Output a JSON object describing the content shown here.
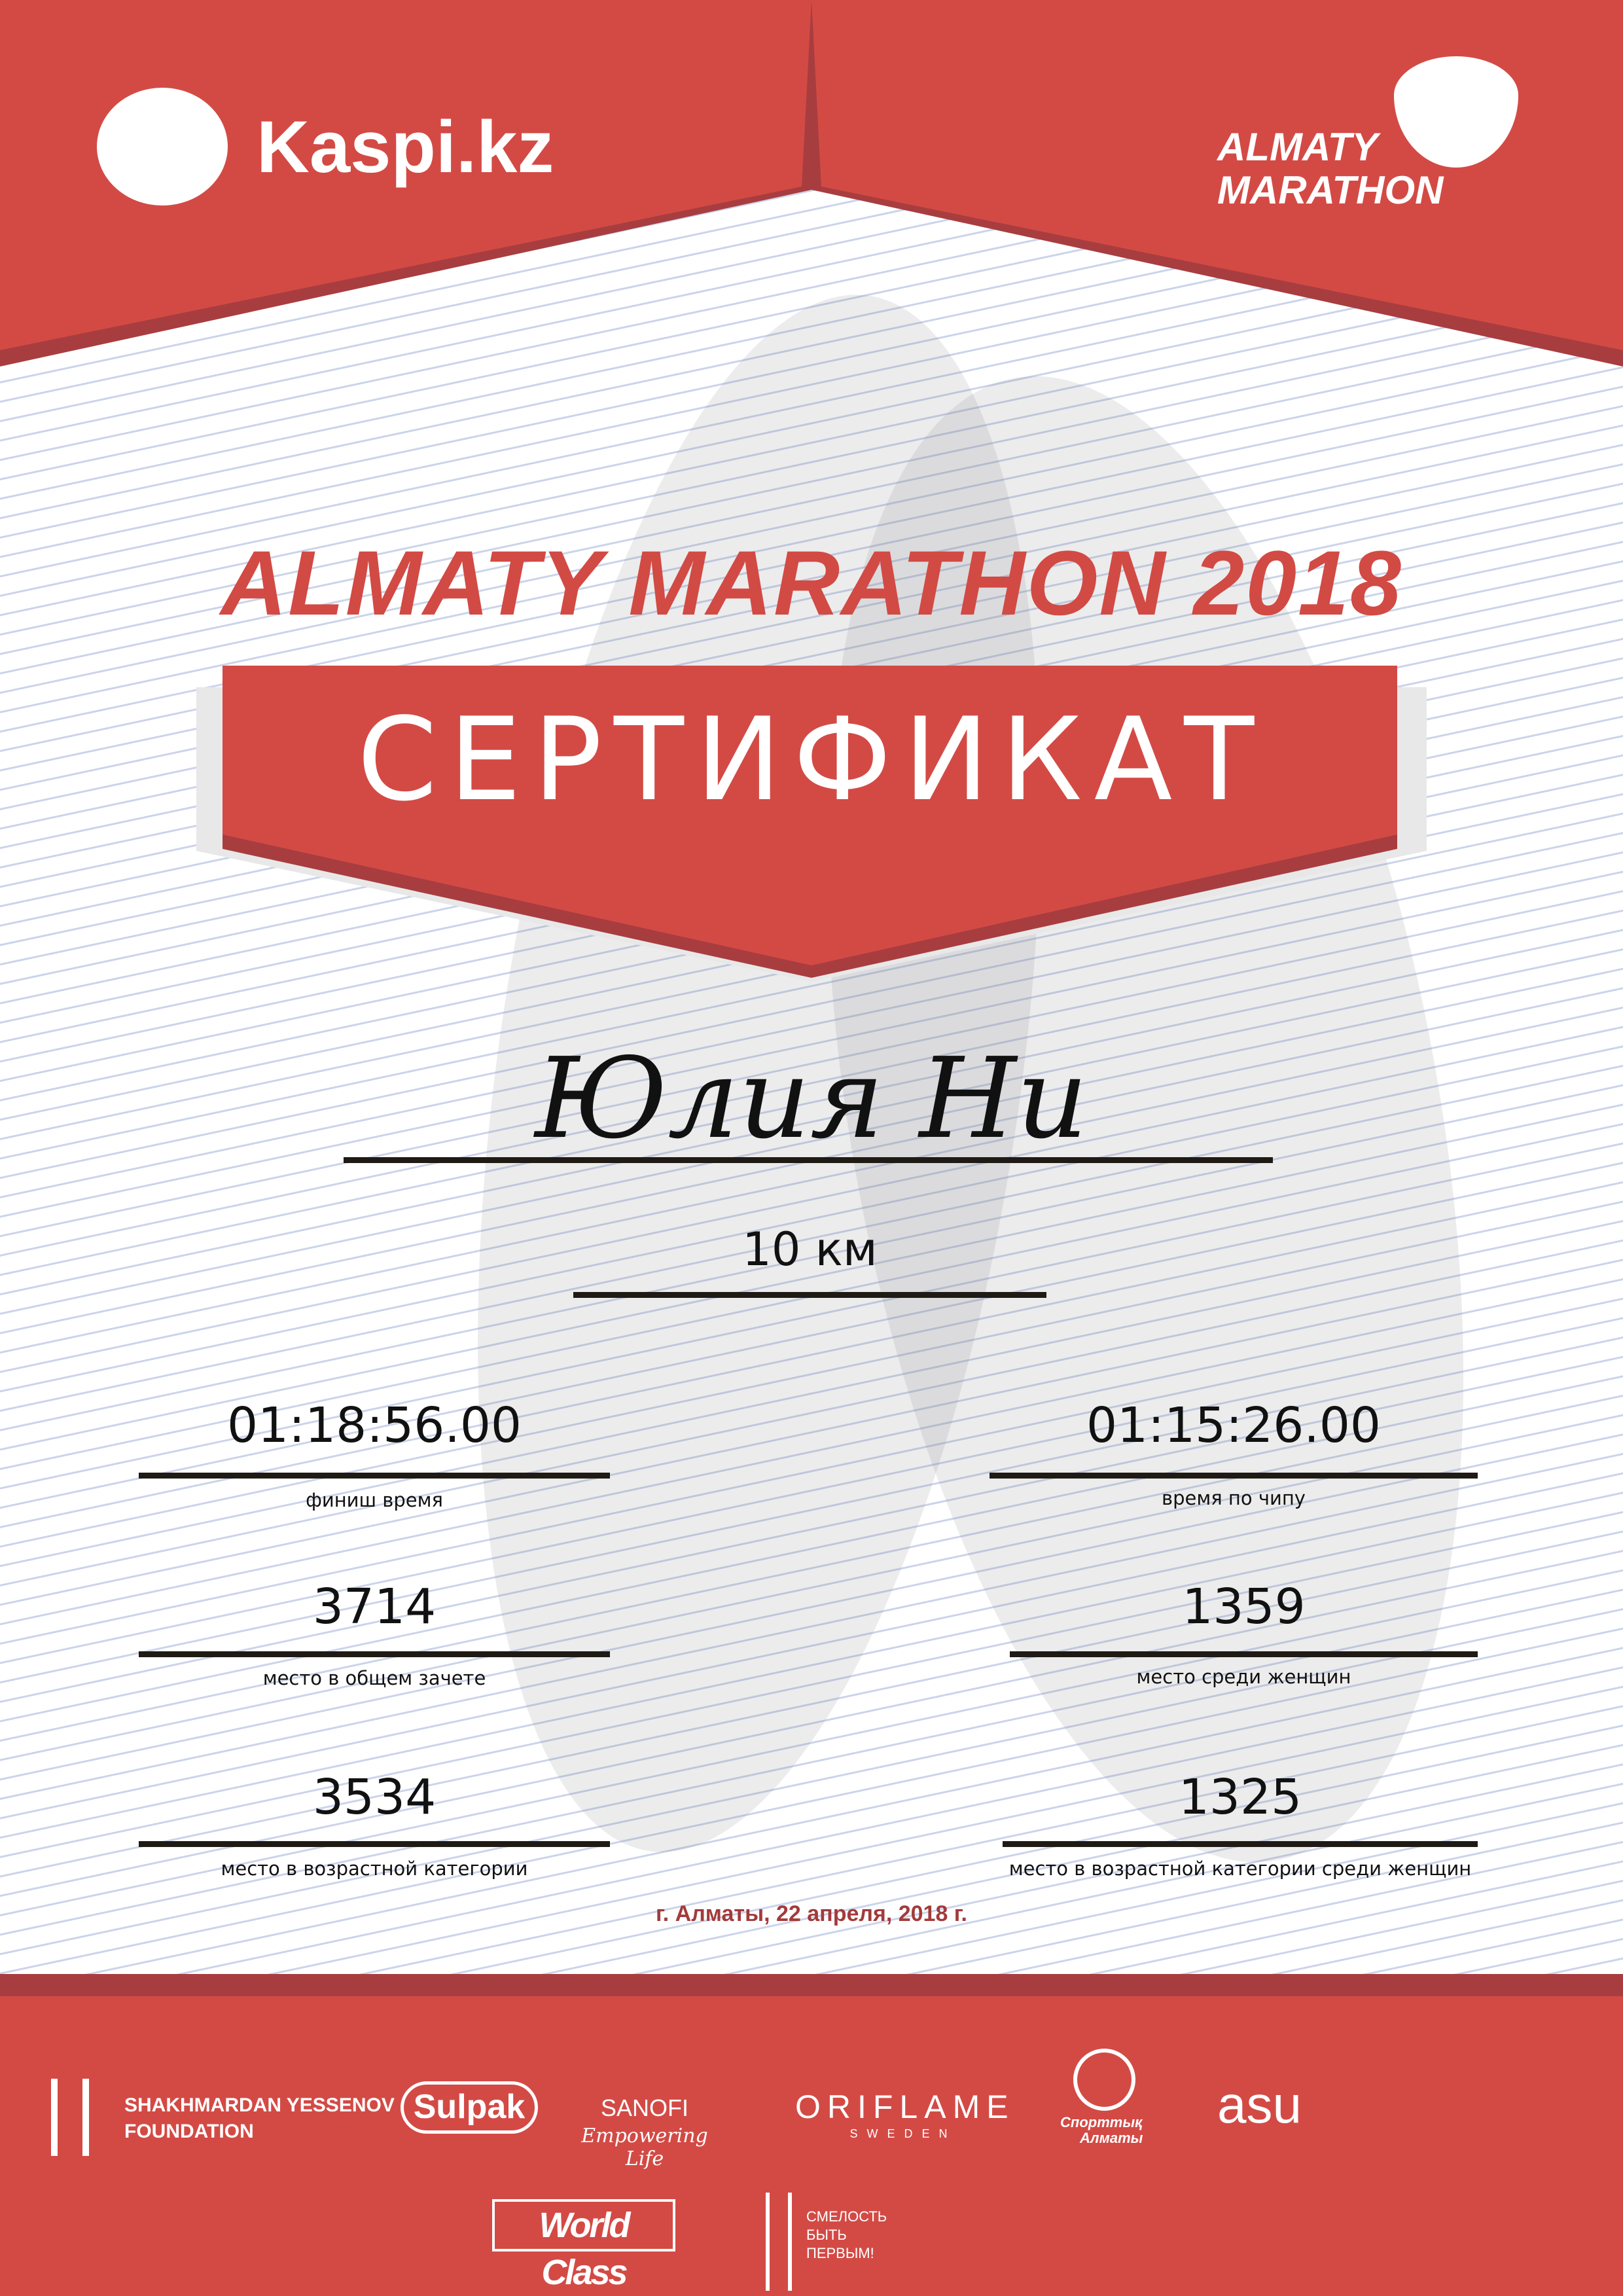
{
  "header": {
    "left_logo": "Kaspi.kz",
    "right_logo": [
      "ALMATY",
      "MARATHON"
    ]
  },
  "title": "ALMATY MARATHON 2018",
  "certificate_label": "СЕРТИФИКАТ",
  "participant_name": "Юлия Ни",
  "distance": "10 км",
  "results": {
    "left": [
      {
        "value": "01:18:56.00",
        "label": "финиш время"
      },
      {
        "value": "3714",
        "label": "место в общем зачете"
      },
      {
        "value": "3534",
        "label": "место в возрастной категории"
      }
    ],
    "right": [
      {
        "value": "01:15:26.00",
        "label": "время по чипу"
      },
      {
        "value": "1359",
        "label": "место среди женщин"
      },
      {
        "value": "1325",
        "label": "место в возрастной категории среди женщин"
      }
    ]
  },
  "date_line": "г. Алматы, 22 апреля, 2018 г.",
  "sponsors": {
    "yessenov": [
      "SHAKHMARDAN YESSENOV",
      "FOUNDATION"
    ],
    "sulpak": "Sulpak",
    "sanofi": [
      "SANOFI",
      "Empowering Life"
    ],
    "oriflame": [
      "ORIFLAME",
      "SWEDEN"
    ],
    "sport_almaty": [
      "Спорттық",
      "Алматы"
    ],
    "asu": "asu",
    "worldclass": "World Class",
    "fund": [
      "СМЕЛОСТЬ",
      "БЫТЬ",
      "ПЕРВЫМ!"
    ]
  },
  "colors": {
    "red": "#d34a45",
    "dark_red": "#a83d3f",
    "date": "#a33a3c"
  }
}
